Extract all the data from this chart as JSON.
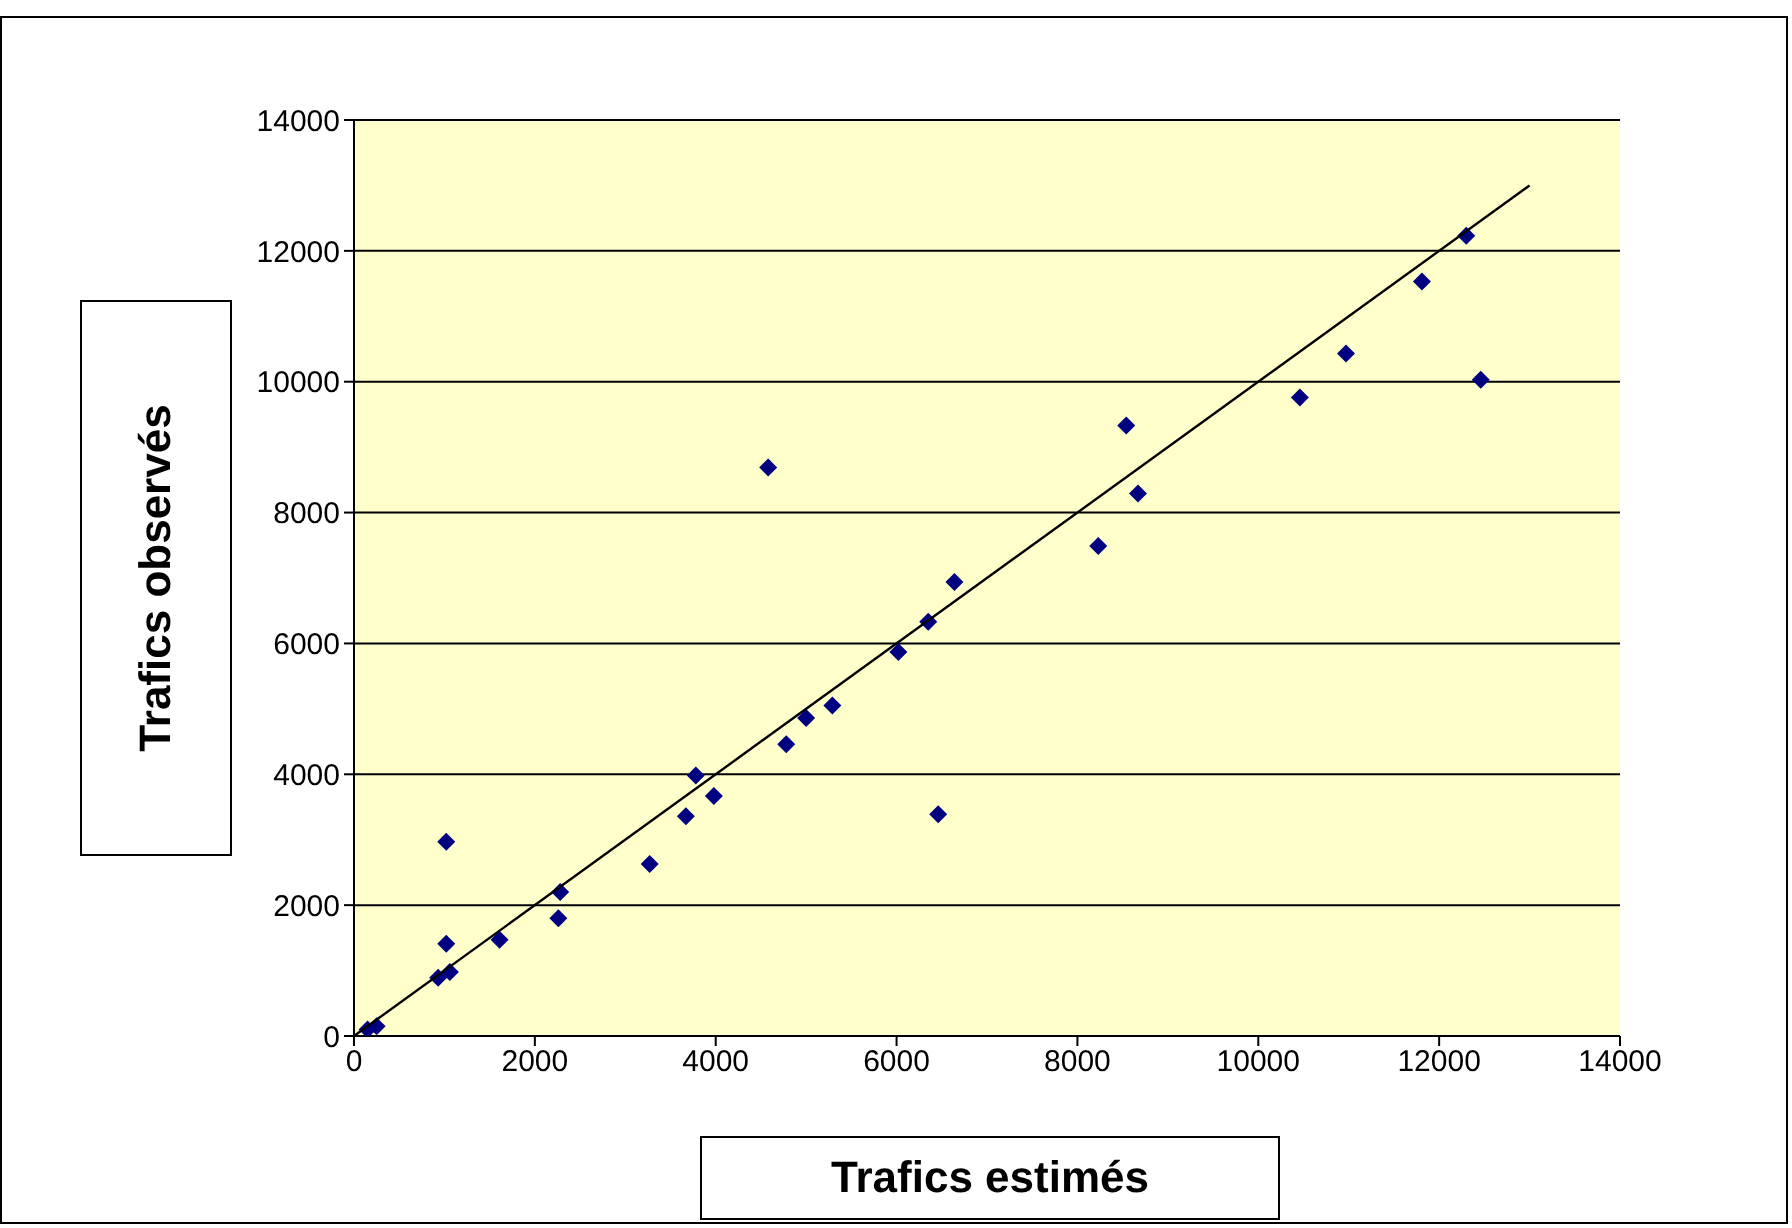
{
  "chart_data": {
    "type": "scatter",
    "xlabel": "Trafics estimés",
    "ylabel": "Trafics observés",
    "xlim": [
      0,
      14000
    ],
    "ylim": [
      0,
      14000
    ],
    "xticks": [
      0,
      2000,
      4000,
      6000,
      8000,
      10000,
      12000,
      14000
    ],
    "yticks": [
      0,
      2000,
      4000,
      6000,
      8000,
      10000,
      12000,
      14000
    ],
    "grid": "y",
    "legend": false,
    "series": [
      {
        "marker": "diamond",
        "color": "#000080",
        "x": [
          150,
          250,
          930,
          1060,
          1020,
          1020,
          1610,
          2260,
          2280,
          3270,
          3670,
          3780,
          3980,
          4780,
          5000,
          5290,
          6020,
          6350,
          6640,
          6460,
          4580,
          8230,
          8540,
          8670,
          10460,
          10970,
          11810,
          12300,
          12460
        ],
        "values": [
          100,
          150,
          890,
          980,
          1410,
          2970,
          1470,
          1800,
          2200,
          2630,
          3360,
          3980,
          3670,
          4460,
          4860,
          5050,
          5870,
          6330,
          6940,
          3390,
          8690,
          7490,
          9330,
          8290,
          9760,
          10430,
          11530,
          12230,
          10030
        ]
      },
      {
        "type": "line",
        "marker": "none",
        "color": "#000000",
        "x": [
          0,
          13000
        ],
        "values": [
          0,
          13000
        ]
      }
    ]
  }
}
